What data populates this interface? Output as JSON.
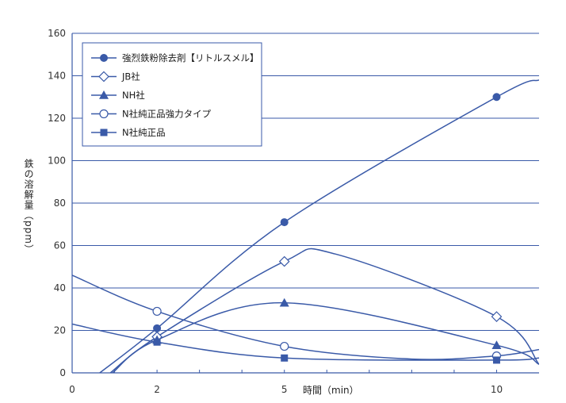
{
  "chart_data": {
    "type": "line",
    "xlabel": "時間（min）",
    "ylabel": "鉄の溶解量（ppm）",
    "xlim": [
      0,
      11
    ],
    "ylim": [
      0,
      160
    ],
    "x_ticks": [
      0,
      2,
      5,
      10
    ],
    "y_ticks": [
      0,
      20,
      40,
      60,
      80,
      100,
      120,
      140,
      160
    ],
    "grid": "horizontal",
    "legend_position": "top-left",
    "line_color": "#3a5aa8",
    "series": [
      {
        "name": "強烈鉄粉除去剤【リトルスメル】",
        "marker": "filled-circle",
        "points": [
          [
            2,
            21
          ],
          [
            5,
            71
          ],
          [
            10,
            130
          ]
        ],
        "curve": [
          [
            0.65,
            0
          ],
          [
            2,
            21
          ],
          [
            5,
            71
          ],
          [
            10,
            130
          ],
          [
            11,
            138
          ]
        ]
      },
      {
        "name": "JB社",
        "marker": "open-diamond",
        "points": [
          [
            2,
            17
          ],
          [
            5,
            52.5
          ],
          [
            10,
            26.5
          ]
        ],
        "curve": [
          [
            0.9,
            0
          ],
          [
            2,
            17
          ],
          [
            5,
            52.5
          ],
          [
            6.2,
            56
          ],
          [
            10,
            26.5
          ],
          [
            11,
            4
          ]
        ]
      },
      {
        "name": "NH社",
        "marker": "filled-triangle",
        "points": [
          [
            2,
            15.5
          ],
          [
            5,
            33
          ],
          [
            10,
            13
          ]
        ],
        "curve": [
          [
            0.95,
            0
          ],
          [
            2,
            15.5
          ],
          [
            5,
            33
          ],
          [
            10,
            13
          ],
          [
            11,
            4
          ]
        ]
      },
      {
        "name": "N社純正品強力タイプ",
        "marker": "open-circle",
        "points": [
          [
            2,
            29
          ],
          [
            5,
            12.5
          ],
          [
            10,
            8
          ]
        ],
        "curve": [
          [
            0,
            46
          ],
          [
            2,
            29
          ],
          [
            5,
            12.5
          ],
          [
            8,
            6.5
          ],
          [
            10,
            8
          ],
          [
            11,
            11
          ]
        ]
      },
      {
        "name": "N社純正品",
        "marker": "filled-square",
        "points": [
          [
            2,
            14.5
          ],
          [
            5,
            7
          ],
          [
            10,
            6
          ]
        ],
        "curve": [
          [
            0,
            23
          ],
          [
            2,
            14.5
          ],
          [
            5,
            7
          ],
          [
            10,
            6
          ],
          [
            11,
            7
          ]
        ]
      }
    ]
  }
}
